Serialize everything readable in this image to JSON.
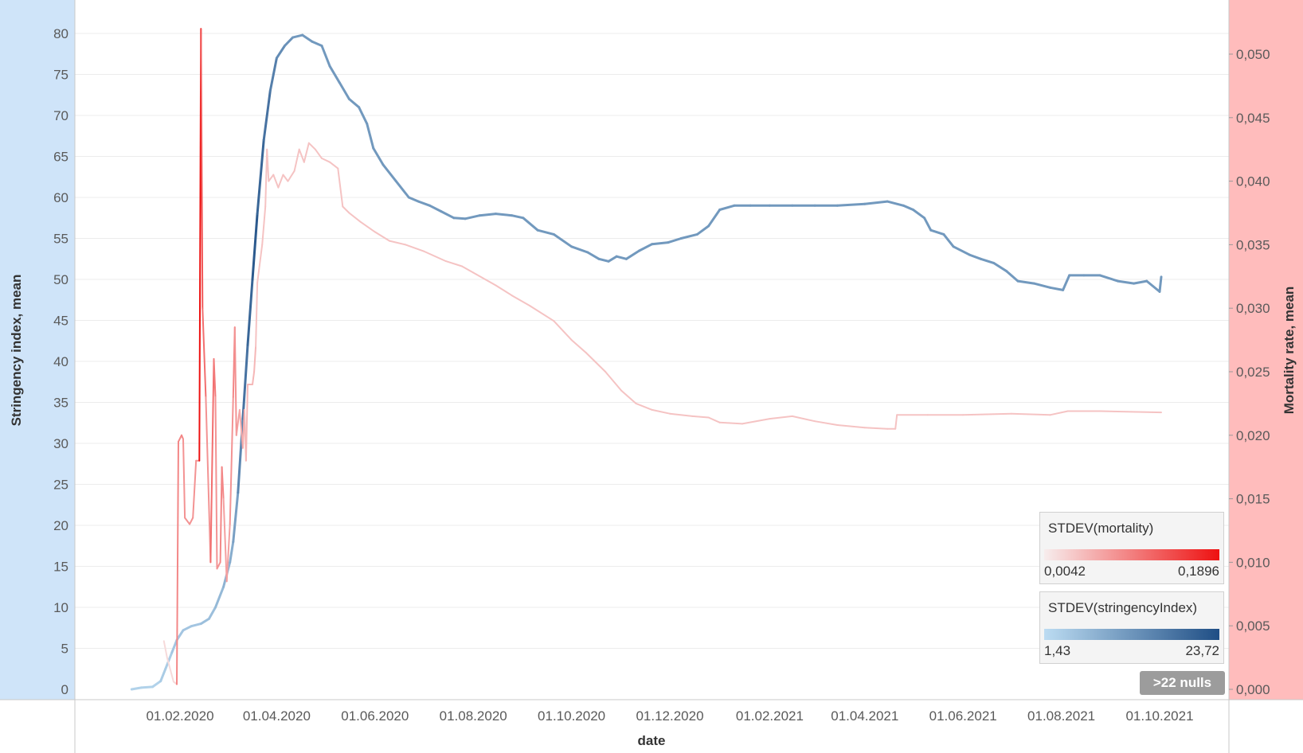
{
  "chart_data": {
    "type": "line",
    "xlabel": "date",
    "ylabel_left": "Stringency index, mean",
    "ylabel_right": "Mortality rate, mean",
    "x_range": [
      "2020-01-01",
      "2021-10-10"
    ],
    "x_ticks": [
      "01.02.2020",
      "01.04.2020",
      "01.06.2020",
      "01.08.2020",
      "01.10.2020",
      "01.12.2020",
      "01.02.2021",
      "01.04.2021",
      "01.06.2021",
      "01.08.2021",
      "01.10.2021"
    ],
    "ylim_left": [
      -1,
      81
    ],
    "y_ticks_left": [
      0,
      5,
      10,
      15,
      20,
      25,
      30,
      35,
      40,
      45,
      50,
      55,
      60,
      65,
      70,
      75,
      80
    ],
    "ylim_right": [
      0,
      0.0525
    ],
    "y_ticks_right": [
      "0,000",
      "0,005",
      "0,010",
      "0,015",
      "0,020",
      "0,025",
      "0,030",
      "0,035",
      "0,040",
      "0,045",
      "0,050"
    ],
    "grid": true,
    "series": [
      {
        "name": "Stringency index, mean",
        "axis": "left",
        "color_by": "STDEV(stringencyIndex)",
        "points": [
          [
            "2020-01-02",
            0.0,
            3
          ],
          [
            "2020-01-08",
            0.2,
            3
          ],
          [
            "2020-01-15",
            0.3,
            3
          ],
          [
            "2020-01-20",
            1.0,
            3
          ],
          [
            "2020-01-23",
            2.5,
            4
          ],
          [
            "2020-01-27",
            4.5,
            4
          ],
          [
            "2020-01-30",
            6.0,
            5
          ],
          [
            "2020-02-03",
            7.2,
            5
          ],
          [
            "2020-02-08",
            7.7,
            5
          ],
          [
            "2020-02-14",
            8.0,
            5
          ],
          [
            "2020-02-19",
            8.6,
            6
          ],
          [
            "2020-02-23",
            10.0,
            6
          ],
          [
            "2020-02-28",
            12.5,
            7
          ],
          [
            "2020-03-03",
            15.5,
            8
          ],
          [
            "2020-03-05",
            18.0,
            9
          ],
          [
            "2020-03-08",
            24.0,
            11
          ],
          [
            "2020-03-11",
            33.0,
            15
          ],
          [
            "2020-03-14",
            42.0,
            18
          ],
          [
            "2020-03-17",
            50.0,
            20
          ],
          [
            "2020-03-20",
            58.0,
            22
          ],
          [
            "2020-03-24",
            67.0,
            20
          ],
          [
            "2020-03-28",
            73.0,
            18
          ],
          [
            "2020-04-01",
            77.0,
            16
          ],
          [
            "2020-04-06",
            78.5,
            14
          ],
          [
            "2020-04-11",
            79.5,
            13
          ],
          [
            "2020-04-17",
            79.8,
            12
          ],
          [
            "2020-04-23",
            79.0,
            12
          ],
          [
            "2020-04-29",
            78.5,
            12
          ],
          [
            "2020-05-04",
            76.0,
            12
          ],
          [
            "2020-05-10",
            74.0,
            12
          ],
          [
            "2020-05-16",
            72.0,
            12
          ],
          [
            "2020-05-22",
            71.0,
            12
          ],
          [
            "2020-05-27",
            69.0,
            12
          ],
          [
            "2020-05-31",
            66.0,
            12
          ],
          [
            "2020-06-06",
            64.0,
            12
          ],
          [
            "2020-06-14",
            62.0,
            12
          ],
          [
            "2020-06-22",
            60.0,
            12
          ],
          [
            "2020-06-28",
            59.5,
            12
          ],
          [
            "2020-07-05",
            59.0,
            12
          ],
          [
            "2020-07-12",
            58.3,
            12
          ],
          [
            "2020-07-20",
            57.5,
            12
          ],
          [
            "2020-07-27",
            57.4,
            12
          ],
          [
            "2020-08-05",
            57.8,
            12
          ],
          [
            "2020-08-15",
            58.0,
            12
          ],
          [
            "2020-08-25",
            57.8,
            12
          ],
          [
            "2020-09-01",
            57.5,
            12
          ],
          [
            "2020-09-10",
            56.0,
            12
          ],
          [
            "2020-09-20",
            55.5,
            12
          ],
          [
            "2020-10-01",
            54.0,
            12
          ],
          [
            "2020-10-11",
            53.3,
            12
          ],
          [
            "2020-10-18",
            52.5,
            12
          ],
          [
            "2020-10-24",
            52.2,
            12
          ],
          [
            "2020-10-29",
            52.8,
            12
          ],
          [
            "2020-11-04",
            52.5,
            12
          ],
          [
            "2020-11-12",
            53.5,
            12
          ],
          [
            "2020-11-20",
            54.3,
            12
          ],
          [
            "2020-11-30",
            54.5,
            12
          ],
          [
            "2020-12-08",
            55.0,
            12
          ],
          [
            "2020-12-18",
            55.5,
            12
          ],
          [
            "2020-12-25",
            56.5,
            12
          ],
          [
            "2021-01-01",
            58.5,
            12
          ],
          [
            "2021-01-10",
            59.0,
            12
          ],
          [
            "2021-01-20",
            59.0,
            12
          ],
          [
            "2021-02-01",
            59.0,
            12
          ],
          [
            "2021-02-15",
            59.0,
            12
          ],
          [
            "2021-03-01",
            59.0,
            12
          ],
          [
            "2021-03-15",
            59.0,
            12
          ],
          [
            "2021-04-01",
            59.2,
            12
          ],
          [
            "2021-04-15",
            59.5,
            12
          ],
          [
            "2021-04-25",
            59.0,
            12
          ],
          [
            "2021-05-01",
            58.5,
            12
          ],
          [
            "2021-05-08",
            57.5,
            12
          ],
          [
            "2021-05-12",
            56.0,
            12
          ],
          [
            "2021-05-20",
            55.5,
            12
          ],
          [
            "2021-05-26",
            54.0,
            12
          ],
          [
            "2021-06-05",
            53.0,
            12
          ],
          [
            "2021-06-12",
            52.5,
            12
          ],
          [
            "2021-06-20",
            52.0,
            12
          ],
          [
            "2021-06-28",
            51.0,
            12
          ],
          [
            "2021-07-05",
            49.8,
            12
          ],
          [
            "2021-07-15",
            49.5,
            12
          ],
          [
            "2021-07-25",
            49.0,
            12
          ],
          [
            "2021-08-02",
            48.7,
            12
          ],
          [
            "2021-08-06",
            50.5,
            12
          ],
          [
            "2021-08-15",
            50.5,
            12
          ],
          [
            "2021-08-25",
            50.5,
            12
          ],
          [
            "2021-09-05",
            49.8,
            12
          ],
          [
            "2021-09-15",
            49.5,
            12
          ],
          [
            "2021-09-23",
            49.8,
            12
          ],
          [
            "2021-10-01",
            48.5,
            12
          ],
          [
            "2021-10-02",
            50.3,
            12
          ]
        ]
      },
      {
        "name": "Mortality rate, mean",
        "axis": "right",
        "color_by": "STDEV(mortality)",
        "points": [
          [
            "2020-01-22",
            0.0038,
            0.02
          ],
          [
            "2020-01-24",
            0.0025,
            0.02
          ],
          [
            "2020-01-28",
            0.0006,
            0.02
          ],
          [
            "2020-01-30",
            0.0004,
            0.02
          ],
          [
            "2020-01-31",
            0.0195,
            0.09
          ],
          [
            "2020-02-02",
            0.02,
            0.09
          ],
          [
            "2020-02-03",
            0.0197,
            0.09
          ],
          [
            "2020-02-04",
            0.0135,
            0.08
          ],
          [
            "2020-02-07",
            0.013,
            0.08
          ],
          [
            "2020-02-09",
            0.0135,
            0.08
          ],
          [
            "2020-02-11",
            0.018,
            0.08
          ],
          [
            "2020-02-13",
            0.018,
            0.08
          ],
          [
            "2020-02-14",
            0.052,
            0.19
          ],
          [
            "2020-02-15",
            0.03,
            0.13
          ],
          [
            "2020-02-17",
            0.023,
            0.11
          ],
          [
            "2020-02-20",
            0.01,
            0.08
          ],
          [
            "2020-02-22",
            0.026,
            0.11
          ],
          [
            "2020-02-23",
            0.023,
            0.1
          ],
          [
            "2020-02-24",
            0.0095,
            0.08
          ],
          [
            "2020-02-26",
            0.01,
            0.08
          ],
          [
            "2020-02-27",
            0.0175,
            0.09
          ],
          [
            "2020-02-28",
            0.015,
            0.09
          ],
          [
            "2020-03-01",
            0.0085,
            0.07
          ],
          [
            "2020-03-03",
            0.013,
            0.07
          ],
          [
            "2020-03-05",
            0.023,
            0.08
          ],
          [
            "2020-03-06",
            0.0285,
            0.09
          ],
          [
            "2020-03-07",
            0.02,
            0.08
          ],
          [
            "2020-03-09",
            0.022,
            0.07
          ],
          [
            "2020-03-11",
            0.019,
            0.06
          ],
          [
            "2020-03-12",
            0.022,
            0.06
          ],
          [
            "2020-03-13",
            0.018,
            0.05
          ],
          [
            "2020-03-14",
            0.024,
            0.05
          ],
          [
            "2020-03-17",
            0.024,
            0.05
          ],
          [
            "2020-03-18",
            0.025,
            0.05
          ],
          [
            "2020-03-19",
            0.027,
            0.05
          ],
          [
            "2020-03-20",
            0.032,
            0.04
          ],
          [
            "2020-03-23",
            0.035,
            0.04
          ],
          [
            "2020-03-25",
            0.038,
            0.04
          ],
          [
            "2020-03-26",
            0.0425,
            0.04
          ],
          [
            "2020-03-27",
            0.04,
            0.04
          ],
          [
            "2020-03-30",
            0.0405,
            0.04
          ],
          [
            "2020-04-02",
            0.0395,
            0.04
          ],
          [
            "2020-04-05",
            0.0405,
            0.04
          ],
          [
            "2020-04-08",
            0.04,
            0.04
          ],
          [
            "2020-04-12",
            0.0408,
            0.04
          ],
          [
            "2020-04-15",
            0.0425,
            0.04
          ],
          [
            "2020-04-18",
            0.0415,
            0.04
          ],
          [
            "2020-04-21",
            0.043,
            0.04
          ],
          [
            "2020-04-25",
            0.0425,
            0.04
          ],
          [
            "2020-04-29",
            0.0418,
            0.04
          ],
          [
            "2020-05-04",
            0.0415,
            0.04
          ],
          [
            "2020-05-09",
            0.041,
            0.04
          ],
          [
            "2020-05-12",
            0.038,
            0.04
          ],
          [
            "2020-05-16",
            0.0375,
            0.04
          ],
          [
            "2020-05-23",
            0.0368,
            0.04
          ],
          [
            "2020-06-01",
            0.036,
            0.04
          ],
          [
            "2020-06-10",
            0.0353,
            0.04
          ],
          [
            "2020-06-20",
            0.035,
            0.04
          ],
          [
            "2020-07-01",
            0.0345,
            0.04
          ],
          [
            "2020-07-15",
            0.0337,
            0.04
          ],
          [
            "2020-07-25",
            0.0333,
            0.04
          ],
          [
            "2020-08-01",
            0.0328,
            0.04
          ],
          [
            "2020-08-15",
            0.0318,
            0.04
          ],
          [
            "2020-08-25",
            0.031,
            0.04
          ],
          [
            "2020-09-05",
            0.0302,
            0.04
          ],
          [
            "2020-09-20",
            0.029,
            0.04
          ],
          [
            "2020-10-01",
            0.0275,
            0.04
          ],
          [
            "2020-10-10",
            0.0265,
            0.04
          ],
          [
            "2020-10-22",
            0.025,
            0.04
          ],
          [
            "2020-11-01",
            0.0235,
            0.04
          ],
          [
            "2020-11-10",
            0.0225,
            0.04
          ],
          [
            "2020-11-20",
            0.022,
            0.04
          ],
          [
            "2020-12-01",
            0.0217,
            0.04
          ],
          [
            "2020-12-15",
            0.0215,
            0.04
          ],
          [
            "2020-12-25",
            0.0214,
            0.04
          ],
          [
            "2021-01-01",
            0.021,
            0.04
          ],
          [
            "2021-01-15",
            0.0209,
            0.04
          ],
          [
            "2021-02-01",
            0.0213,
            0.04
          ],
          [
            "2021-02-15",
            0.0215,
            0.04
          ],
          [
            "2021-03-01",
            0.0211,
            0.04
          ],
          [
            "2021-03-15",
            0.0208,
            0.04
          ],
          [
            "2021-04-01",
            0.0206,
            0.04
          ],
          [
            "2021-04-15",
            0.0205,
            0.04
          ],
          [
            "2021-04-20",
            0.0205,
            0.04
          ],
          [
            "2021-04-21",
            0.0216,
            0.04
          ],
          [
            "2021-05-10",
            0.0216,
            0.04
          ],
          [
            "2021-06-01",
            0.0216,
            0.04
          ],
          [
            "2021-07-01",
            0.0217,
            0.04
          ],
          [
            "2021-07-25",
            0.0216,
            0.04
          ],
          [
            "2021-08-05",
            0.0219,
            0.04
          ],
          [
            "2021-08-25",
            0.0219,
            0.04
          ],
          [
            "2021-10-02",
            0.0218,
            0.04
          ]
        ]
      }
    ]
  },
  "legends": [
    {
      "title": "STDEV(mortality)",
      "min": "0,0042",
      "max": "0,1896",
      "color_from": "#f7eded",
      "color_to": "#ee1111"
    },
    {
      "title": "STDEV(stringencyIndex)",
      "min": "1,43",
      "max": "23,72",
      "color_from": "#bcdcf2",
      "color_to": "#1f4e85"
    }
  ],
  "nulls_badge": ">22 nulls",
  "colors": {
    "left_axis_bg": "#cfe4f9",
    "right_axis_bg": "#ffbcbc",
    "grid": "#ececec"
  }
}
